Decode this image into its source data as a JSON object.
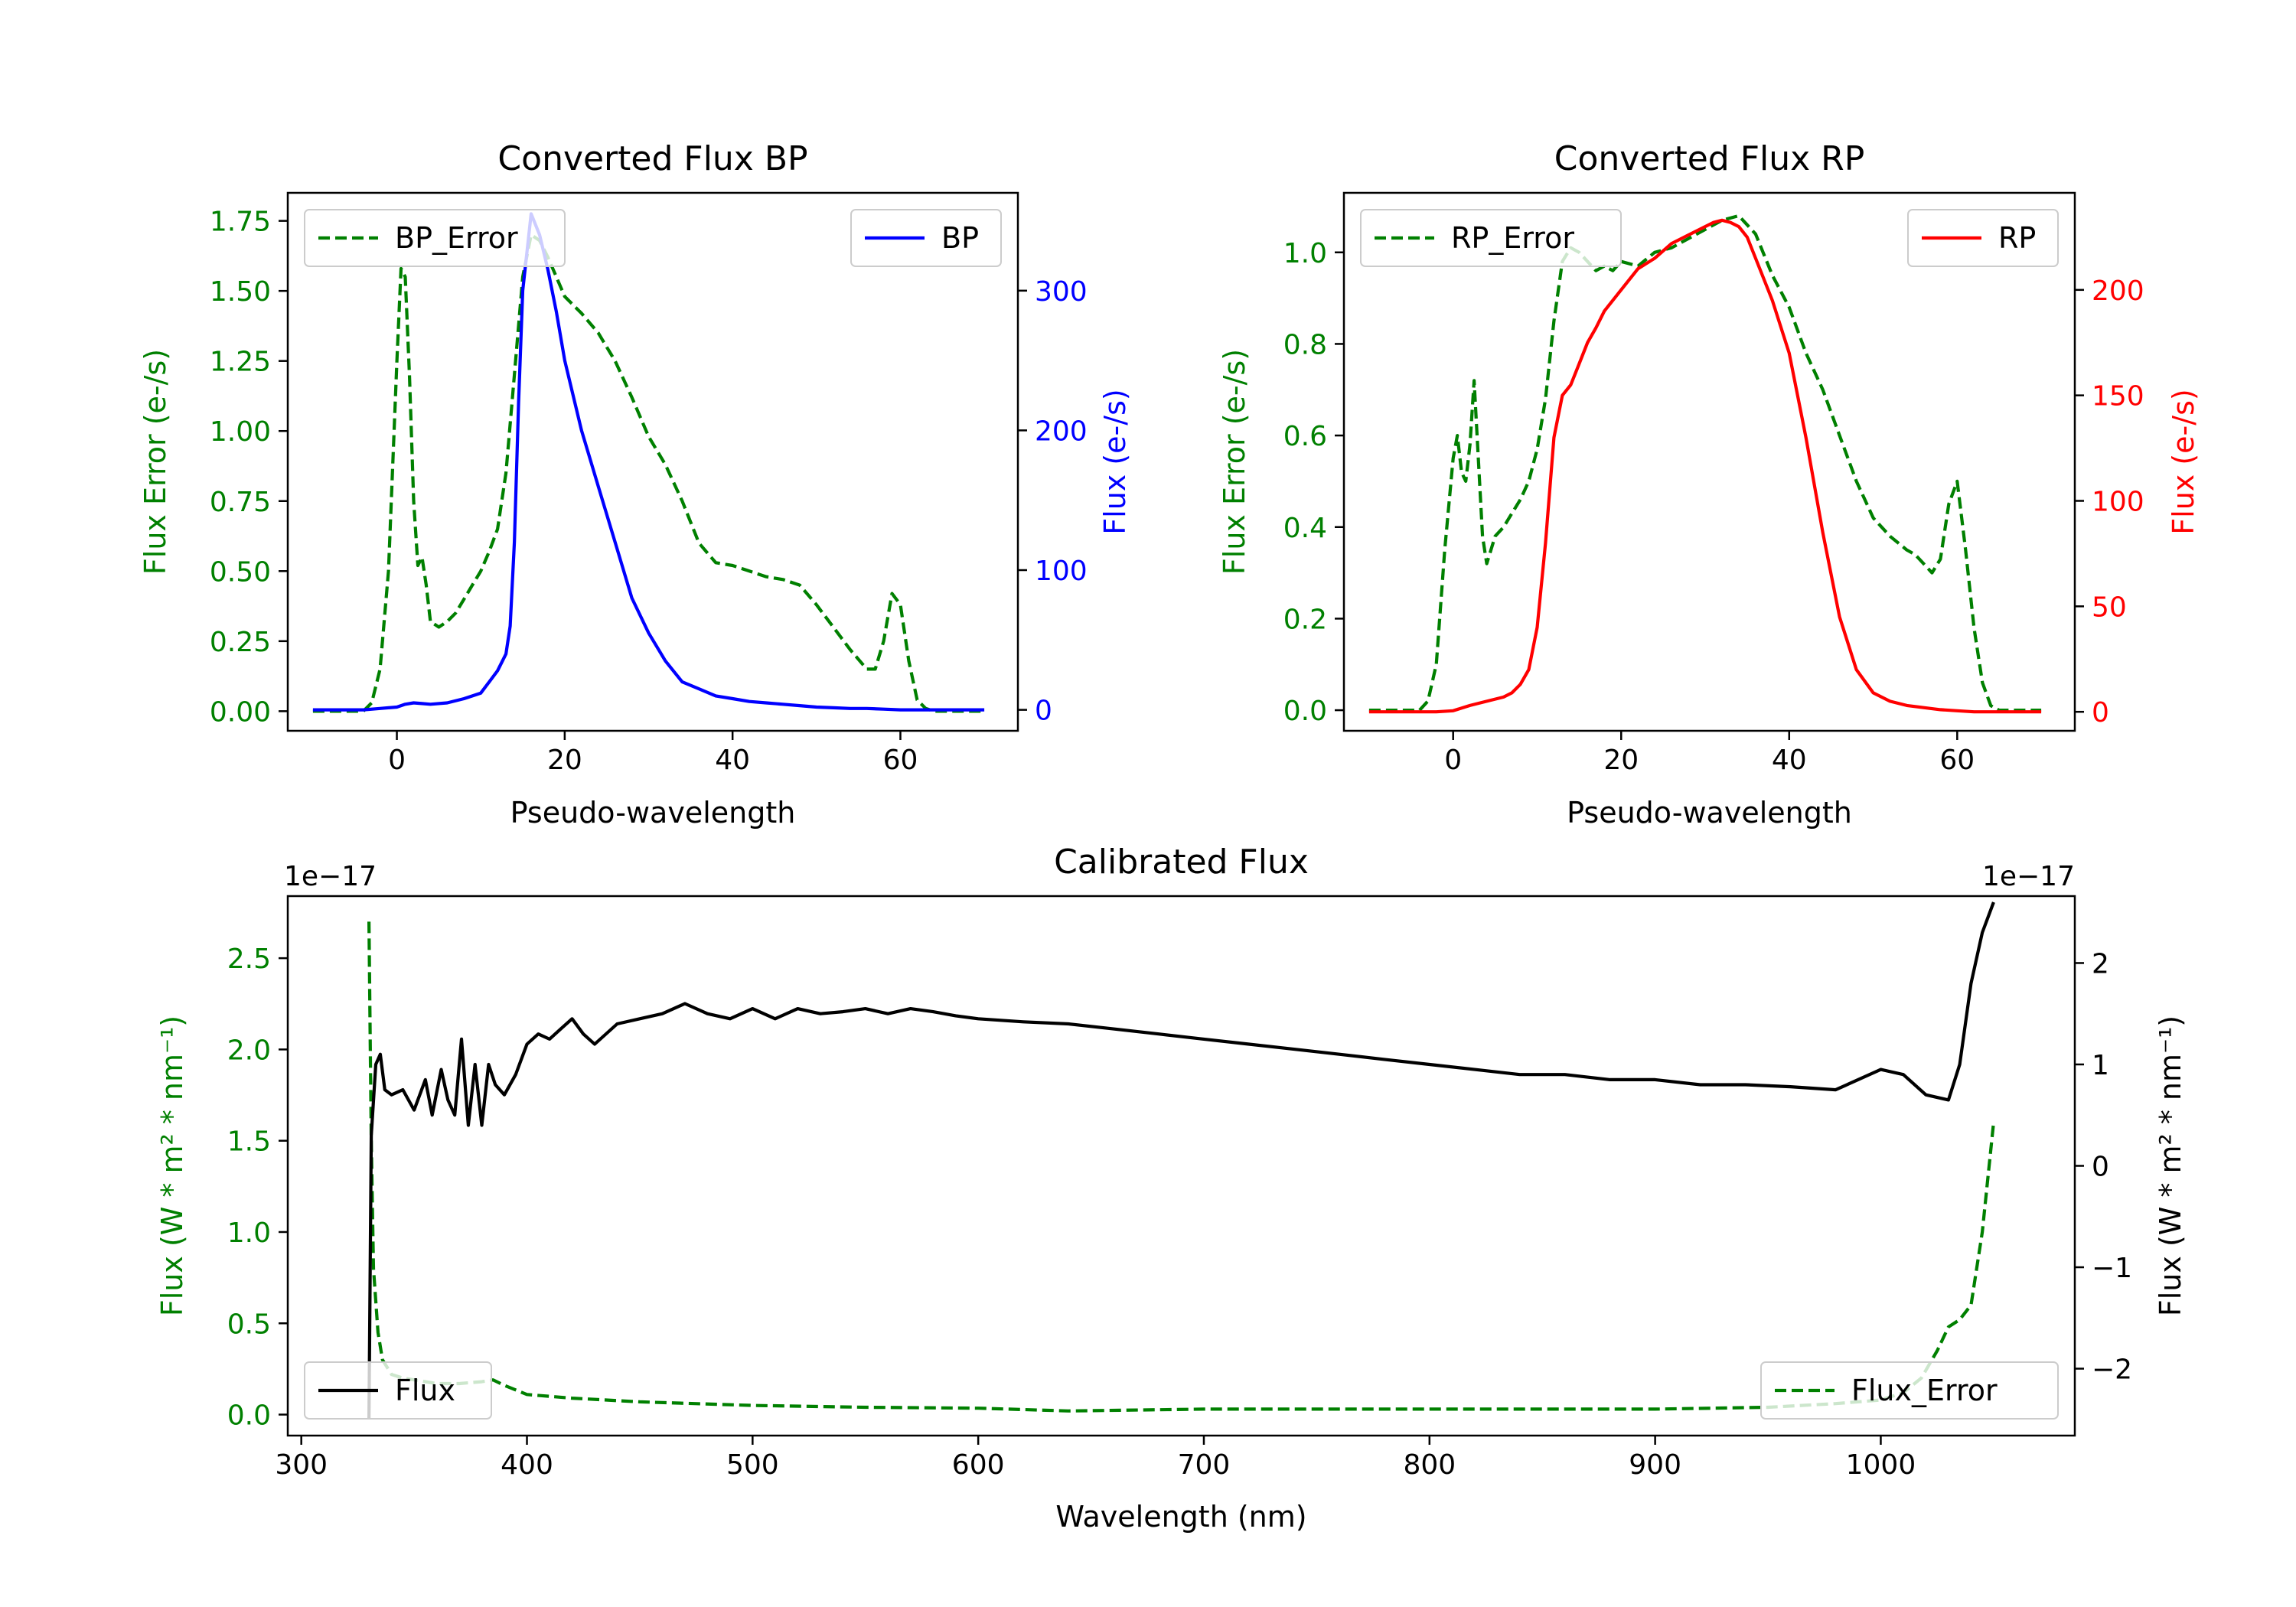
{
  "chart_data": [
    {
      "id": "bp",
      "type": "line",
      "title": "Converted Flux BP",
      "xlabel": "Pseudo-wavelength",
      "xlim": [
        -13,
        74
      ],
      "x_ticks": [
        0,
        20,
        40,
        60
      ],
      "left_axis": {
        "label": "Flux Error (e-/s)",
        "color": "#008000",
        "ylim": [
          -0.07,
          1.85
        ],
        "ticks": [
          "0.00",
          "0.25",
          "0.50",
          "0.75",
          "1.00",
          "1.25",
          "1.50",
          "1.75"
        ]
      },
      "right_axis": {
        "label": "Flux (e-/s)",
        "color": "#0000ff",
        "ylim": [
          -15,
          370
        ],
        "ticks": [
          "0",
          "100",
          "200",
          "300"
        ]
      },
      "series": [
        {
          "name": "BP_Error",
          "axis": "left",
          "style": "dashed",
          "color": "#008000",
          "x": [
            -10,
            -4,
            -3,
            -2,
            -1,
            0,
            0.5,
            1,
            1.5,
            2,
            2.5,
            3,
            3.5,
            4,
            5,
            6,
            7,
            8,
            9,
            10,
            11,
            12,
            13,
            14,
            15,
            16,
            17,
            18,
            19,
            20,
            22,
            24,
            26,
            28,
            30,
            32,
            34,
            36,
            38,
            40,
            42,
            44,
            46,
            48,
            50,
            52,
            54,
            56,
            57,
            58,
            59,
            60,
            61,
            62,
            63,
            64,
            65,
            67,
            70
          ],
          "y": [
            0,
            0,
            0.03,
            0.15,
            0.5,
            1.25,
            1.58,
            1.55,
            1.2,
            0.75,
            0.52,
            0.55,
            0.45,
            0.32,
            0.3,
            0.32,
            0.35,
            0.4,
            0.45,
            0.5,
            0.57,
            0.65,
            0.85,
            1.2,
            1.55,
            1.7,
            1.68,
            1.62,
            1.55,
            1.48,
            1.42,
            1.35,
            1.25,
            1.12,
            0.98,
            0.88,
            0.75,
            0.6,
            0.53,
            0.52,
            0.5,
            0.48,
            0.47,
            0.45,
            0.38,
            0.3,
            0.22,
            0.15,
            0.15,
            0.25,
            0.42,
            0.38,
            0.18,
            0.04,
            0.01,
            0,
            0,
            0,
            0
          ]
        },
        {
          "name": "BP",
          "axis": "right",
          "style": "solid",
          "color": "#0000ff",
          "x": [
            -10,
            -4,
            -2,
            0,
            1,
            2,
            3,
            4,
            6,
            8,
            10,
            11,
            12,
            13,
            13.5,
            14,
            14.5,
            15,
            16,
            17,
            18,
            19,
            20,
            22,
            24,
            26,
            28,
            30,
            32,
            34,
            36,
            38,
            40,
            42,
            44,
            46,
            48,
            50,
            52,
            54,
            56,
            58,
            60,
            62,
            65,
            70
          ],
          "y": [
            0,
            0,
            1,
            2,
            4,
            5,
            4.5,
            4,
            5,
            8,
            12,
            20,
            28,
            40,
            60,
            120,
            220,
            300,
            355,
            340,
            315,
            285,
            250,
            200,
            160,
            120,
            80,
            55,
            35,
            20,
            15,
            10,
            8,
            6,
            5,
            4,
            3,
            2,
            1.5,
            1,
            1,
            0.5,
            0,
            0,
            0,
            0
          ]
        }
      ],
      "legend": [
        {
          "label": "BP_Error",
          "position": "upper-left"
        },
        {
          "label": "BP",
          "position": "upper-right"
        }
      ]
    },
    {
      "id": "rp",
      "type": "line",
      "title": "Converted Flux RP",
      "xlabel": "Pseudo-wavelength",
      "xlim": [
        -13,
        74
      ],
      "x_ticks": [
        0,
        20,
        40,
        60
      ],
      "left_axis": {
        "label": "Flux Error (e-/s)",
        "color": "#008000",
        "ylim": [
          -0.045,
          1.13
        ],
        "ticks": [
          "0.0",
          "0.2",
          "0.4",
          "0.6",
          "0.8",
          "1.0"
        ]
      },
      "right_axis": {
        "label": "Flux (e-/s)",
        "color": "#ff0000",
        "ylim": [
          -9,
          246
        ],
        "ticks": [
          "0",
          "50",
          "100",
          "150",
          "200"
        ]
      },
      "series": [
        {
          "name": "RP_Error",
          "axis": "left",
          "style": "dashed",
          "color": "#008000",
          "x": [
            -10,
            -4,
            -3,
            -2,
            -1,
            0,
            0.5,
            1,
            1.5,
            2,
            2.5,
            3,
            3.5,
            4,
            5,
            6,
            7,
            8,
            9,
            10,
            11,
            12,
            13,
            14,
            15,
            16,
            17,
            18,
            19,
            20,
            22,
            24,
            26,
            28,
            30,
            32,
            34,
            36,
            38,
            40,
            42,
            44,
            46,
            48,
            50,
            52,
            54,
            55,
            56,
            57,
            58,
            59,
            60,
            61,
            62,
            63,
            64,
            65,
            67,
            70
          ],
          "y": [
            0,
            0,
            0.02,
            0.1,
            0.35,
            0.55,
            0.6,
            0.52,
            0.5,
            0.58,
            0.72,
            0.55,
            0.38,
            0.32,
            0.38,
            0.4,
            0.43,
            0.46,
            0.5,
            0.57,
            0.68,
            0.85,
            0.98,
            1.01,
            1.0,
            0.98,
            0.96,
            0.97,
            0.96,
            0.98,
            0.97,
            1.0,
            1.01,
            1.03,
            1.05,
            1.07,
            1.08,
            1.04,
            0.95,
            0.88,
            0.78,
            0.7,
            0.6,
            0.5,
            0.42,
            0.38,
            0.35,
            0.34,
            0.32,
            0.3,
            0.33,
            0.45,
            0.5,
            0.35,
            0.18,
            0.06,
            0.01,
            0,
            0,
            0
          ]
        },
        {
          "name": "RP",
          "axis": "right",
          "style": "solid",
          "color": "#ff0000",
          "x": [
            -10,
            -4,
            -2,
            0,
            2,
            4,
            6,
            7,
            8,
            9,
            10,
            11,
            12,
            13,
            14,
            15,
            16,
            17,
            18,
            20,
            22,
            24,
            26,
            28,
            30,
            31,
            32,
            33,
            34,
            35,
            36,
            38,
            40,
            42,
            44,
            46,
            48,
            50,
            52,
            54,
            56,
            58,
            60,
            62,
            64,
            66,
            70
          ],
          "y": [
            0,
            0,
            0,
            0.5,
            3,
            5,
            7,
            9,
            13,
            20,
            40,
            80,
            130,
            150,
            155,
            165,
            175,
            182,
            190,
            200,
            210,
            215,
            222,
            226,
            230,
            232,
            233,
            232,
            230,
            225,
            215,
            195,
            170,
            130,
            85,
            45,
            20,
            9,
            5,
            3,
            2,
            1,
            0.5,
            0,
            0,
            0,
            0
          ]
        }
      ],
      "legend": [
        {
          "label": "RP_Error",
          "position": "upper-left"
        },
        {
          "label": "RP",
          "position": "upper-right"
        }
      ]
    },
    {
      "id": "cal",
      "type": "line",
      "title": "Calibrated Flux",
      "xlabel": "Wavelength (nm)",
      "xlim": [
        294,
        1086
      ],
      "x_ticks": [
        300,
        400,
        500,
        600,
        700,
        800,
        900,
        1000
      ],
      "left_axis": {
        "label": "Flux (W * m² * nm⁻¹)",
        "color": "#008000",
        "ylim": [
          -0.115,
          2.84
        ],
        "ticks": [
          "0.0",
          "0.5",
          "1.0",
          "1.5",
          "2.0",
          "2.5"
        ],
        "offset_text": "1e−17"
      },
      "right_axis": {
        "label": "Flux (W * m² * nm⁻¹)",
        "color": "#000000",
        "ylim": [
          -2.66,
          2.66
        ],
        "ticks": [
          "−2",
          "−1",
          "0",
          "1",
          "2"
        ],
        "offset_text": "1e−17"
      },
      "series": [
        {
          "name": "Flux_Error",
          "axis": "left",
          "style": "dashed",
          "color": "#008000",
          "x": [
            330,
            331,
            332,
            334,
            336,
            340,
            345,
            350,
            360,
            370,
            380,
            385,
            390,
            400,
            420,
            450,
            500,
            550,
            600,
            640,
            700,
            800,
            900,
            950,
            980,
            1000,
            1010,
            1018,
            1025,
            1030,
            1035,
            1040,
            1045,
            1050
          ],
          "y": [
            2.7,
            1.5,
            0.8,
            0.45,
            0.3,
            0.22,
            0.2,
            0.19,
            0.17,
            0.17,
            0.18,
            0.19,
            0.16,
            0.11,
            0.09,
            0.07,
            0.05,
            0.04,
            0.035,
            0.02,
            0.03,
            0.03,
            0.03,
            0.04,
            0.06,
            0.08,
            0.12,
            0.2,
            0.35,
            0.48,
            0.52,
            0.6,
            1.0,
            1.6
          ]
        },
        {
          "name": "Flux",
          "axis": "right",
          "style": "solid",
          "color": "#000000",
          "x": [
            330,
            331,
            333,
            335,
            337,
            340,
            345,
            350,
            355,
            358,
            362,
            365,
            368,
            371,
            374,
            377,
            380,
            383,
            386,
            390,
            395,
            400,
            405,
            410,
            415,
            420,
            425,
            430,
            440,
            450,
            460,
            470,
            480,
            490,
            500,
            510,
            520,
            530,
            540,
            550,
            560,
            570,
            580,
            590,
            600,
            620,
            640,
            660,
            680,
            700,
            720,
            740,
            760,
            780,
            800,
            820,
            840,
            860,
            880,
            900,
            920,
            940,
            960,
            980,
            1000,
            1010,
            1020,
            1030,
            1035,
            1040,
            1045,
            1050
          ],
          "y": [
            -2.5,
            0.3,
            1.0,
            1.1,
            0.75,
            0.7,
            0.75,
            0.55,
            0.85,
            0.5,
            0.95,
            0.65,
            0.5,
            1.25,
            0.4,
            1.0,
            0.4,
            1.0,
            0.8,
            0.7,
            0.9,
            1.2,
            1.3,
            1.25,
            1.35,
            1.45,
            1.3,
            1.2,
            1.4,
            1.45,
            1.5,
            1.6,
            1.5,
            1.45,
            1.55,
            1.45,
            1.55,
            1.5,
            1.52,
            1.55,
            1.5,
            1.55,
            1.52,
            1.48,
            1.45,
            1.42,
            1.4,
            1.35,
            1.3,
            1.25,
            1.2,
            1.15,
            1.1,
            1.05,
            1.0,
            0.95,
            0.9,
            0.9,
            0.85,
            0.85,
            0.8,
            0.8,
            0.78,
            0.75,
            0.95,
            0.9,
            0.7,
            0.65,
            1.0,
            1.8,
            2.3,
            2.6
          ]
        }
      ],
      "legend": [
        {
          "label": "Flux",
          "position": "lower-left"
        },
        {
          "label": "Flux_Error",
          "position": "lower-right"
        }
      ]
    }
  ]
}
